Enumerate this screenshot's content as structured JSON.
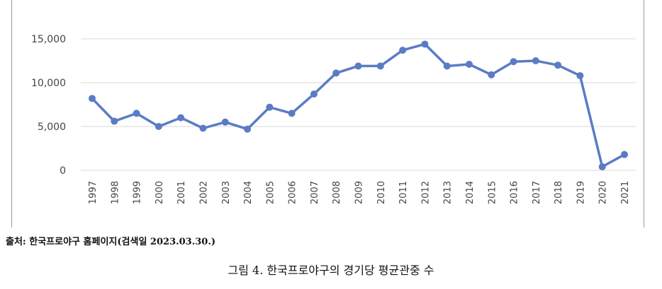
{
  "chart_data": {
    "type": "line",
    "title": "",
    "xlabel": "",
    "ylabel": "",
    "ylim": [
      0,
      15000
    ],
    "y_ticks": [
      "15,000",
      "10,000",
      "5,000",
      "0"
    ],
    "y_tick_values": [
      15000,
      10000,
      5000,
      0
    ],
    "grid": true,
    "legend": "none",
    "line_color": "#5b7cc4",
    "categories": [
      "1997",
      "1998",
      "1999",
      "2000",
      "2001",
      "2002",
      "2003",
      "2004",
      "2005",
      "2006",
      "2007",
      "2008",
      "2009",
      "2010",
      "2011",
      "2012",
      "2013",
      "2014",
      "2015",
      "2016",
      "2017",
      "2018",
      "2019",
      "2020",
      "2021"
    ],
    "series": [
      {
        "values": [
          8200,
          5600,
          6500,
          5000,
          6000,
          4800,
          5500,
          4700,
          7200,
          6500,
          8700,
          11100,
          11900,
          11900,
          13700,
          14400,
          11900,
          12100,
          10900,
          12400,
          12500,
          12000,
          10800,
          400,
          1800
        ]
      }
    ]
  },
  "source_note": "출처: 한국프로야구 홈페이지(검색일 2023.03.30.)",
  "caption": "그림 4. 한국프로야구의 경기당 평균관중 수"
}
